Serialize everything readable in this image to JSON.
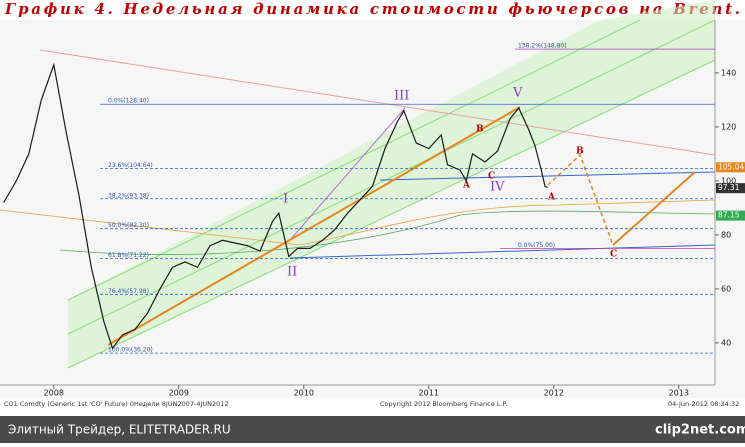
{
  "header": {
    "title": "График 4. Недельная динамика стоимости фьючерсов на Brent."
  },
  "chart_data": {
    "type": "line",
    "series": [
      {
        "color": "#1a1a1a",
        "x": [
          2008.1,
          2008.2,
          2008.3,
          2008.4,
          2008.5,
          2008.6,
          2008.7,
          2008.8,
          2008.9,
          2008.97,
          2009.05,
          2009.15,
          2009.25,
          2009.35,
          2009.45,
          2009.55,
          2009.65,
          2009.75,
          2009.85,
          2009.95,
          2010.05,
          2010.15,
          2010.25,
          2010.3,
          2010.38,
          2010.45,
          2010.55,
          2010.65,
          2010.75,
          2010.85,
          2010.95,
          2011.05,
          2011.15,
          2011.25,
          2011.3,
          2011.4,
          2011.5,
          2011.6,
          2011.65,
          2011.75,
          2011.8,
          2011.85,
          2011.95,
          2012.05,
          2012.15,
          2012.22,
          2012.3,
          2012.35,
          2012.4,
          2012.43,
          2012.45
        ],
        "values": [
          92,
          100,
          110,
          130,
          143,
          118,
          95,
          68,
          48,
          38,
          43,
          45,
          51,
          60,
          68,
          70,
          68,
          76,
          78,
          77,
          76,
          74,
          85,
          88,
          72,
          75,
          75,
          78,
          82,
          88,
          93,
          98,
          112,
          122,
          126,
          114,
          112,
          117,
          106,
          104,
          100,
          110,
          107,
          111,
          123,
          127,
          119,
          113,
          104,
          98,
          97.5
        ]
      }
    ],
    "xlim": [
      2008.07,
      2013.79
    ],
    "ylim": [
      28.1,
      159.6
    ],
    "xticks": [
      {
        "value": 2008.5,
        "label": "2008"
      },
      {
        "value": 2009.5,
        "label": "2009"
      },
      {
        "value": 2010.5,
        "label": "2010"
      },
      {
        "value": 2011.5,
        "label": "2011"
      },
      {
        "value": 2012.5,
        "label": "2012"
      },
      {
        "value": 2013.5,
        "label": "2013"
      }
    ],
    "yticks": [
      40,
      60,
      80,
      100,
      120,
      140
    ],
    "fib_levels": [
      {
        "value": 148.8,
        "label": "138.2%(148.80)",
        "color": "#a040c0"
      },
      {
        "value": 128.4,
        "label": "0.0%(128.40)",
        "color": "#3366cc"
      },
      {
        "value": 104.64,
        "label": "23.6%(104.64)",
        "color": "#3366cc"
      },
      {
        "value": 93.38,
        "label": "38.2%(93.38)",
        "color": "#3366cc"
      },
      {
        "value": 82.3,
        "label": "50.0%(82.30)",
        "color": "#3366cc"
      },
      {
        "value": 71.22,
        "label": "61.8%(71.22)",
        "color": "#3366cc"
      },
      {
        "value": 57.98,
        "label": "76.4%(57.98)",
        "color": "#3366cc"
      },
      {
        "value": 36.2,
        "label": "100.0%(36.20)",
        "color": "#3366cc"
      },
      {
        "value": 75,
        "label": "0.0%(75.00)",
        "color": "#c040a0"
      }
    ],
    "price_tags": [
      {
        "value": 105.04,
        "color": "#e8861e"
      },
      {
        "value": 97.31,
        "color": "#333333"
      },
      {
        "value": 87.15,
        "color": "#33aa55"
      }
    ],
    "wave_labels": [
      "I",
      "II",
      "III",
      "IV",
      "V",
      "A",
      "B",
      "C",
      "A",
      "B",
      "C"
    ]
  },
  "footer": {
    "left": "CO1 Comdty (Generic 1st 'CO' Future) 0Недели 8JUN2007-4JUN2012",
    "center": "Copyright 2012 Bloomberg Finance L.P.",
    "right": "04-Jun-2012 08:34:32"
  },
  "watermark": {
    "site": "Элитный Трейдер, ELITETRADER.RU",
    "logo": "clip2net.com"
  }
}
